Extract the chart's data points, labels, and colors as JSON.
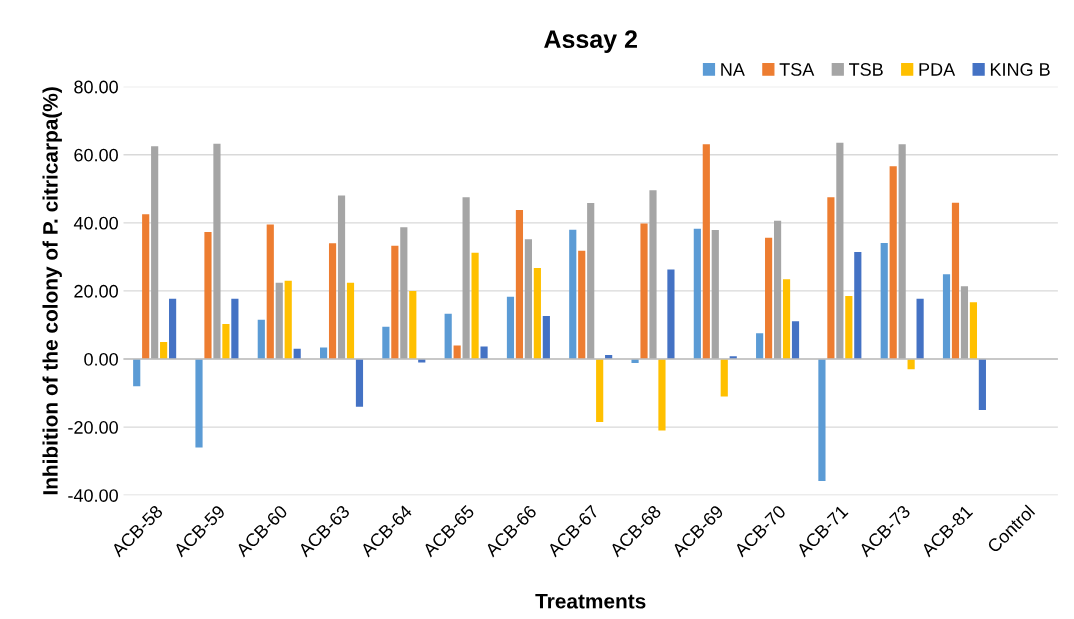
{
  "chart_data": {
    "type": "bar",
    "title": "Assay 2",
    "xlabel": "Treatments",
    "ylabel": "Inhibition of the colony of P. citricarpa(%)",
    "categories": [
      "ACB-58",
      "ACB-59",
      "ACB-60",
      "ACB-63",
      "ACB-64",
      "ACB-65",
      "ACB-66",
      "ACB-67",
      "ACB-68",
      "ACB-69",
      "ACB-70",
      "ACB-71",
      "ACB-73",
      "ACB-81",
      "Control"
    ],
    "series": [
      {
        "name": "NA",
        "color": "#5b9bd5",
        "values": [
          -8,
          -26,
          11.5,
          3.4,
          9.5,
          13.3,
          18.3,
          38,
          -1.2,
          38.3,
          7.6,
          -35.8,
          34.1,
          24.9,
          0
        ]
      },
      {
        "name": "TSA",
        "color": "#ed7d31",
        "values": [
          42.5,
          37.3,
          39.5,
          34,
          33.3,
          4,
          43.8,
          31.8,
          39.8,
          63.1,
          35.6,
          47.5,
          56.6,
          45.9,
          0
        ]
      },
      {
        "name": "TSB",
        "color": "#a5a5a5",
        "values": [
          62.5,
          63.2,
          22.4,
          48,
          38.7,
          47.5,
          35.2,
          45.8,
          49.6,
          37.9,
          40.6,
          63.5,
          63.1,
          21.4,
          0
        ]
      },
      {
        "name": "PDA",
        "color": "#ffc000",
        "values": [
          5,
          10.3,
          23,
          22.4,
          20,
          31.2,
          26.7,
          -18.5,
          -21,
          -11,
          23.4,
          18.5,
          -3,
          16.7,
          0
        ]
      },
      {
        "name": "KING B",
        "color": "#4472c4",
        "values": [
          17.7,
          17.7,
          3,
          -14,
          -1,
          3.7,
          12.6,
          1.2,
          26.3,
          0.8,
          11.1,
          31.4,
          17.7,
          -15,
          0
        ]
      }
    ],
    "ylim": [
      -40,
      80
    ],
    "yticks": [
      {
        "value": -40,
        "label": "-40.00"
      },
      {
        "value": -20,
        "label": "-20.00"
      },
      {
        "value": 0,
        "label": "0.00"
      },
      {
        "value": 20,
        "label": "20.00"
      },
      {
        "value": 40,
        "label": "40.00"
      },
      {
        "value": 60,
        "label": "60.00"
      },
      {
        "value": 80,
        "label": "80.00"
      }
    ],
    "grid": "y",
    "legend": "top right"
  }
}
